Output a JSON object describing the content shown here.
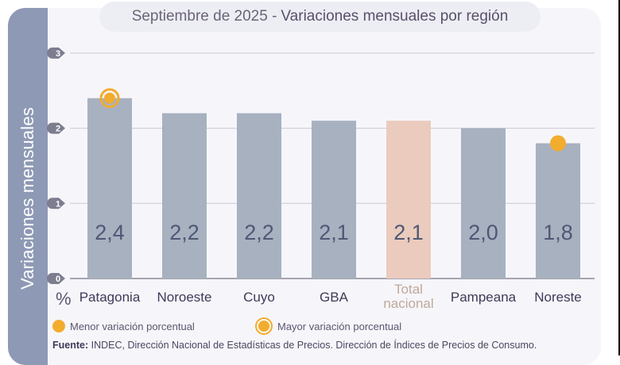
{
  "header": {
    "title_prefix": "Septiembre de 2025 -",
    "title_main": "Variaciones mensuales por región"
  },
  "side_label": "Variaciones  mensuales",
  "unit_symbol": "%",
  "legend": {
    "min_label": "Menor variación porcentual",
    "max_label": "Mayor variación porcentual"
  },
  "source": {
    "label": "Fuente:",
    "text": "INDEC, Dirección Nacional de Estadísticas de Precios. Dirección de Índices de Precios de Consumo."
  },
  "colors": {
    "bar": "#a7b1c0",
    "bar_total": "#ebcbbd",
    "marker": "#f2ac2e",
    "value_text": "#4e5875",
    "axis_badge": "#7d7d90",
    "grid": "#c9c9d3"
  },
  "chart_data": {
    "type": "bar",
    "title": "Septiembre de 2025 - Variaciones mensuales por región",
    "xlabel": "",
    "ylabel": "Variaciones mensuales (%)",
    "ylim": [
      0,
      3
    ],
    "yticks": [
      0,
      1,
      2,
      3
    ],
    "grid": true,
    "categories": [
      "Patagonia",
      "Noroeste",
      "Cuyo",
      "GBA",
      "Total nacional",
      "Pampeana",
      "Noreste"
    ],
    "values": [
      2.4,
      2.2,
      2.2,
      2.1,
      2.1,
      2.0,
      1.8
    ],
    "value_labels": [
      "2,4",
      "2,2",
      "2,2",
      "2,1",
      "2,1",
      "2,0",
      "1,8"
    ],
    "highlight": {
      "Patagonia": "max",
      "Noreste": "min",
      "Total nacional": "total"
    },
    "legend": [
      {
        "marker": "filled-dot",
        "label": "Menor variación porcentual"
      },
      {
        "marker": "ringed-dot",
        "label": "Mayor variación porcentual"
      }
    ],
    "legend_position": "bottom-left"
  }
}
